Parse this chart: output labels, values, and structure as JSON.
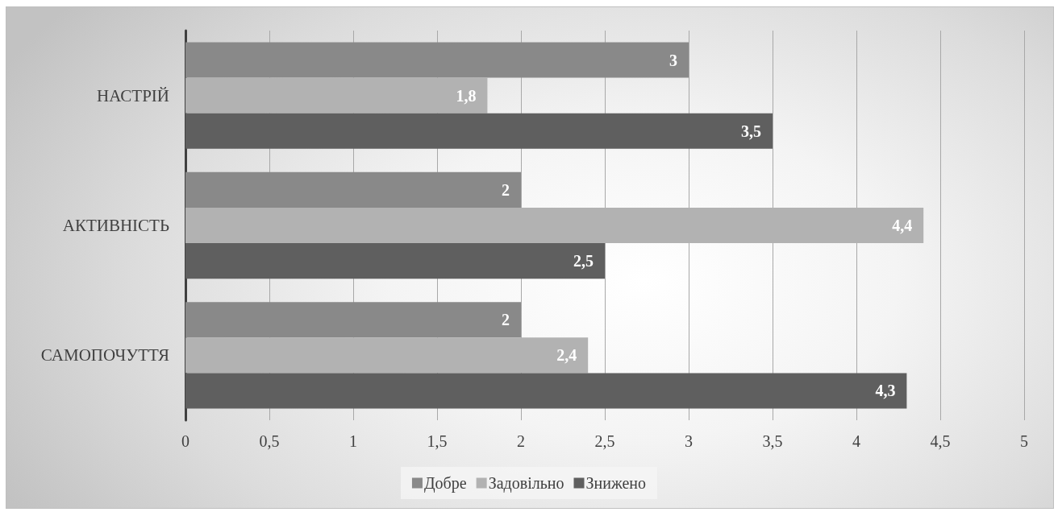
{
  "chart_data": {
    "type": "bar",
    "orientation": "horizontal",
    "categories": [
      "НАСТРІЙ",
      "АКТИВНІСТЬ",
      "САМОПОЧУТТЯ"
    ],
    "series": [
      {
        "name": "Добре",
        "color": "#898989",
        "values": [
          3,
          2,
          2
        ],
        "value_labels": [
          "3",
          "2",
          "2"
        ]
      },
      {
        "name": "Задовільно",
        "color": "#b2b2b2",
        "values": [
          1.8,
          4.4,
          2.4
        ],
        "value_labels": [
          "1,8",
          "4,4",
          "2,4"
        ]
      },
      {
        "name": "Знижено",
        "color": "#5f5f5f",
        "values": [
          3.5,
          2.5,
          4.3
        ],
        "value_labels": [
          "3,5",
          "2,5",
          "4,3"
        ]
      }
    ],
    "xlim": [
      0,
      5
    ],
    "xticks": [
      0,
      {
        "value": 0.5,
        "label": "0,5"
      },
      1,
      {
        "value": 1.5,
        "label": "1,5"
      },
      2,
      {
        "value": 2.5,
        "label": "2,5"
      },
      3,
      {
        "value": 3.5,
        "label": "3,5"
      },
      4,
      {
        "value": 4.5,
        "label": "4,5"
      },
      5
    ],
    "grid": "x",
    "legend": "bottom"
  }
}
